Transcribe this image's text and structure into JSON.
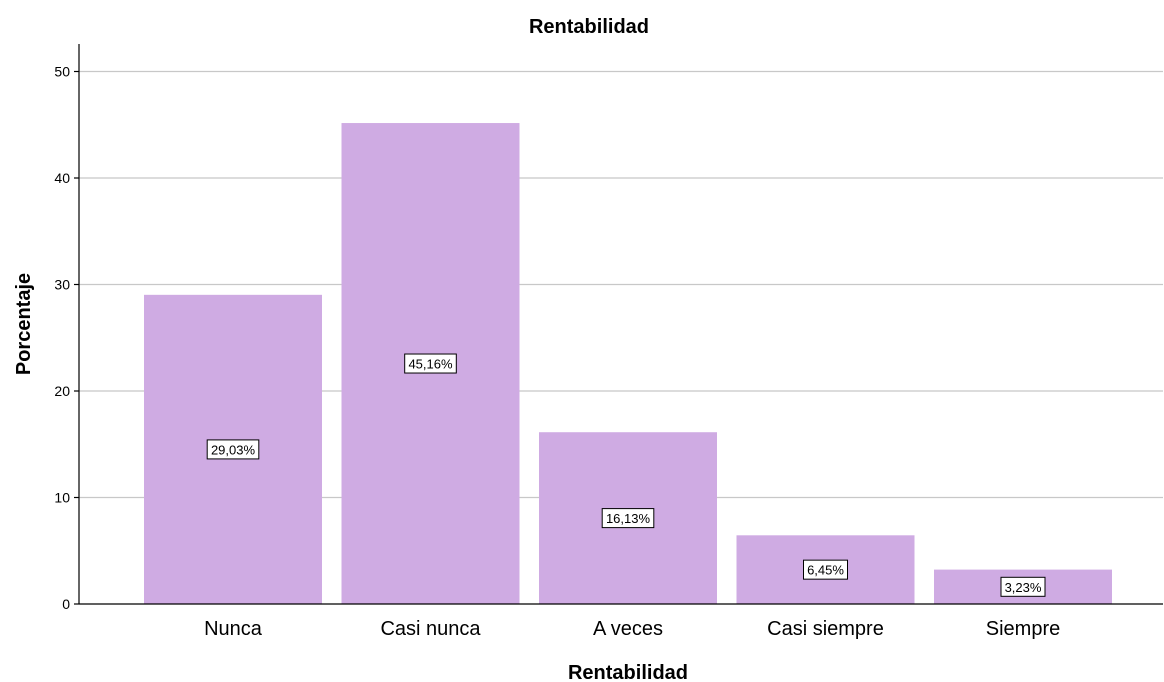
{
  "chart_data": {
    "type": "bar",
    "title": "Rentabilidad",
    "xlabel": "Rentabilidad",
    "ylabel": "Porcentaje",
    "categories": [
      "Nunca",
      "Casi nunca",
      "A veces",
      "Casi siempre",
      "Siempre"
    ],
    "values": [
      29.03,
      45.16,
      16.13,
      6.45,
      3.23
    ],
    "data_labels": [
      "29,03%",
      "45,16%",
      "16,13%",
      "6,45%",
      "3,23%"
    ],
    "ylim": [
      0,
      52
    ],
    "yticks": [
      "0",
      "10",
      "20",
      "30",
      "40",
      "50"
    ],
    "grid": true,
    "legend": "none",
    "colors": {
      "bar": "#cfabe3",
      "grid": "#c8c8c8",
      "axis": "#000000"
    }
  }
}
